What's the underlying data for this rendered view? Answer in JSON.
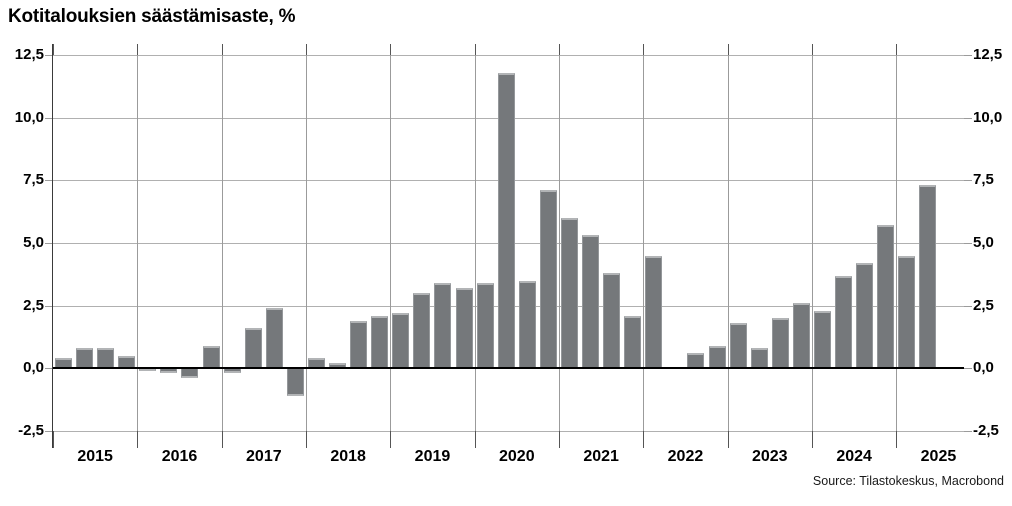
{
  "title": "Kotitalouksien säästämisaste, %",
  "source_note": "Source: Tilastokeskus, Macrobond",
  "chart_data": {
    "type": "bar",
    "title": "Kotitalouksien säästämisaste, %",
    "unit": "%",
    "frequency": "quarterly",
    "grid": true,
    "legend": "none",
    "ylim": [
      -2.5,
      12.5
    ],
    "ytick_step": 2.5,
    "ytick_labels_top_to_bottom": [
      "12,5",
      "10,0",
      "7,5",
      "5,0",
      "2,5",
      "0,0",
      "-2,5"
    ],
    "ytick_labels_shown_both_sides": true,
    "bar_color": "#75787B",
    "bar_edge_color": "#b2b4b6",
    "grid_color": "#b0b0b0",
    "zero_line_color": "#000000",
    "years": [
      {
        "label": "2015",
        "values": [
          0.4,
          0.8,
          0.8,
          0.5
        ]
      },
      {
        "label": "2016",
        "values": [
          -0.1,
          -0.2,
          -0.4,
          0.9
        ]
      },
      {
        "label": "2017",
        "values": [
          -0.2,
          1.6,
          2.4,
          -1.1
        ]
      },
      {
        "label": "2018",
        "values": [
          0.4,
          0.2,
          1.9,
          2.1
        ]
      },
      {
        "label": "2019",
        "values": [
          2.2,
          3.0,
          3.4,
          3.2
        ]
      },
      {
        "label": "2020",
        "values": [
          3.4,
          11.8,
          3.5,
          7.1
        ]
      },
      {
        "label": "2021",
        "values": [
          6.0,
          5.3,
          3.8,
          2.1
        ]
      },
      {
        "label": "2022",
        "values": [
          4.5,
          0.0,
          0.6,
          0.9
        ]
      },
      {
        "label": "2023",
        "values": [
          1.8,
          0.8,
          2.0,
          2.6
        ]
      },
      {
        "label": "2024",
        "values": [
          2.3,
          3.7,
          4.2,
          5.7
        ]
      },
      {
        "label": "2025",
        "values": [
          4.5,
          7.3
        ]
      }
    ]
  }
}
